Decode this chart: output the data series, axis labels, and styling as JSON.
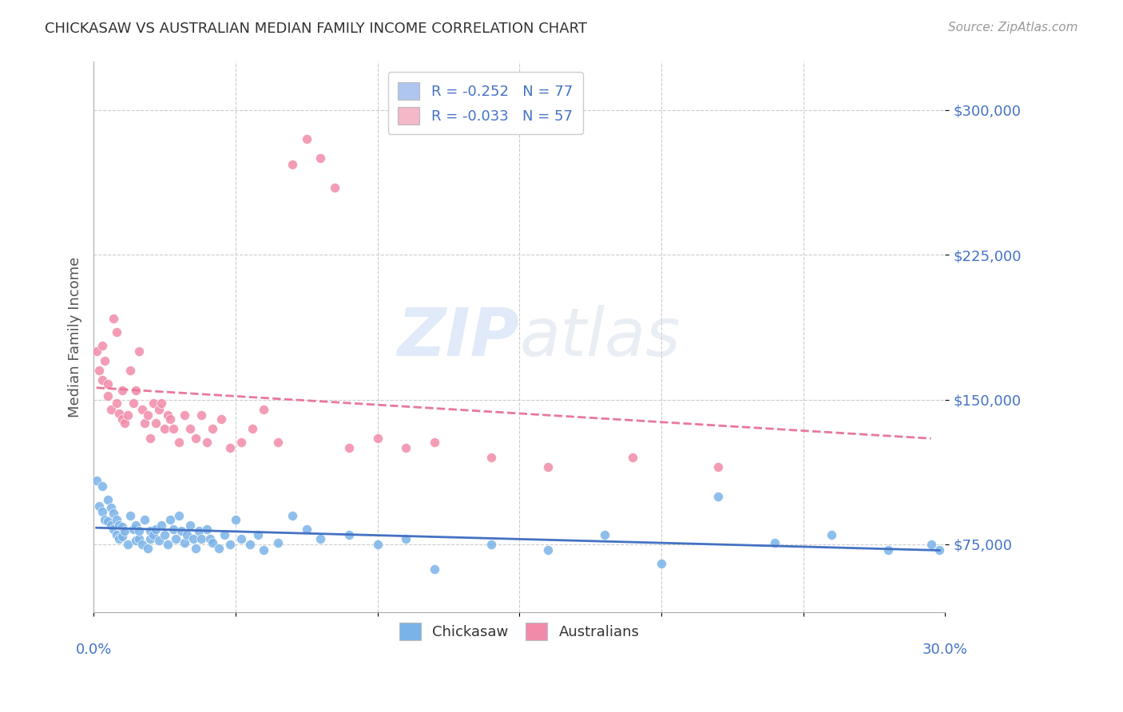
{
  "title": "CHICKASAW VS AUSTRALIAN MEDIAN FAMILY INCOME CORRELATION CHART",
  "source": "Source: ZipAtlas.com",
  "ylabel": "Median Family Income",
  "yticks": [
    75000,
    150000,
    225000,
    300000
  ],
  "ytick_labels": [
    "$75,000",
    "$150,000",
    "$225,000",
    "$300,000"
  ],
  "xlim": [
    0.0,
    0.3
  ],
  "ylim": [
    40000,
    325000
  ],
  "watermark_zip": "ZIP",
  "watermark_atlas": "atlas",
  "legend_entries": [
    {
      "label": "R = -0.252   N = 77",
      "color": "#aec6f0"
    },
    {
      "label": "R = -0.033   N = 57",
      "color": "#f4b8c8"
    }
  ],
  "chickasaw_color": "#7ab3e8",
  "australians_color": "#f28baa",
  "chickasaw_trend_color": "#4472c4",
  "australians_trend_color": "#e8789a",
  "background_color": "#ffffff",
  "grid_color": "#cccccc",
  "title_color": "#333333",
  "axis_label_color": "#4472c4",
  "source_color": "#999999",
  "chickasaw_x": [
    0.001,
    0.002,
    0.003,
    0.003,
    0.004,
    0.005,
    0.005,
    0.006,
    0.006,
    0.007,
    0.007,
    0.008,
    0.008,
    0.009,
    0.009,
    0.01,
    0.01,
    0.011,
    0.012,
    0.013,
    0.014,
    0.015,
    0.015,
    0.016,
    0.016,
    0.017,
    0.018,
    0.019,
    0.02,
    0.02,
    0.021,
    0.022,
    0.023,
    0.024,
    0.025,
    0.026,
    0.027,
    0.028,
    0.029,
    0.03,
    0.031,
    0.032,
    0.033,
    0.034,
    0.035,
    0.036,
    0.037,
    0.038,
    0.04,
    0.041,
    0.042,
    0.044,
    0.046,
    0.048,
    0.05,
    0.052,
    0.055,
    0.058,
    0.06,
    0.065,
    0.07,
    0.075,
    0.08,
    0.09,
    0.1,
    0.11,
    0.12,
    0.14,
    0.16,
    0.18,
    0.2,
    0.22,
    0.24,
    0.26,
    0.28,
    0.295,
    0.298
  ],
  "chickasaw_y": [
    108000,
    95000,
    92000,
    105000,
    88000,
    98000,
    87000,
    94000,
    85000,
    83000,
    91000,
    80000,
    88000,
    85000,
    78000,
    84000,
    79000,
    82000,
    75000,
    90000,
    83000,
    77000,
    85000,
    78000,
    82000,
    75000,
    88000,
    73000,
    82000,
    78000,
    80000,
    83000,
    77000,
    85000,
    80000,
    75000,
    88000,
    83000,
    78000,
    90000,
    82000,
    76000,
    80000,
    85000,
    78000,
    73000,
    82000,
    78000,
    83000,
    78000,
    76000,
    73000,
    80000,
    75000,
    88000,
    78000,
    75000,
    80000,
    72000,
    76000,
    90000,
    83000,
    78000,
    80000,
    75000,
    78000,
    62000,
    75000,
    72000,
    80000,
    65000,
    100000,
    76000,
    80000,
    72000,
    75000,
    72000
  ],
  "australians_x": [
    0.001,
    0.002,
    0.003,
    0.003,
    0.004,
    0.005,
    0.005,
    0.006,
    0.007,
    0.008,
    0.008,
    0.009,
    0.01,
    0.01,
    0.011,
    0.012,
    0.013,
    0.014,
    0.015,
    0.016,
    0.017,
    0.018,
    0.019,
    0.02,
    0.021,
    0.022,
    0.023,
    0.024,
    0.025,
    0.026,
    0.027,
    0.028,
    0.03,
    0.032,
    0.034,
    0.036,
    0.038,
    0.04,
    0.042,
    0.045,
    0.048,
    0.052,
    0.056,
    0.06,
    0.065,
    0.07,
    0.075,
    0.08,
    0.085,
    0.09,
    0.1,
    0.11,
    0.12,
    0.14,
    0.16,
    0.19,
    0.22
  ],
  "australians_y": [
    175000,
    165000,
    178000,
    160000,
    170000,
    158000,
    152000,
    145000,
    192000,
    185000,
    148000,
    143000,
    140000,
    155000,
    138000,
    142000,
    165000,
    148000,
    155000,
    175000,
    145000,
    138000,
    142000,
    130000,
    148000,
    138000,
    145000,
    148000,
    135000,
    142000,
    140000,
    135000,
    128000,
    142000,
    135000,
    130000,
    142000,
    128000,
    135000,
    140000,
    125000,
    128000,
    135000,
    145000,
    128000,
    272000,
    285000,
    275000,
    260000,
    125000,
    130000,
    125000,
    128000,
    120000,
    115000,
    120000,
    115000
  ]
}
